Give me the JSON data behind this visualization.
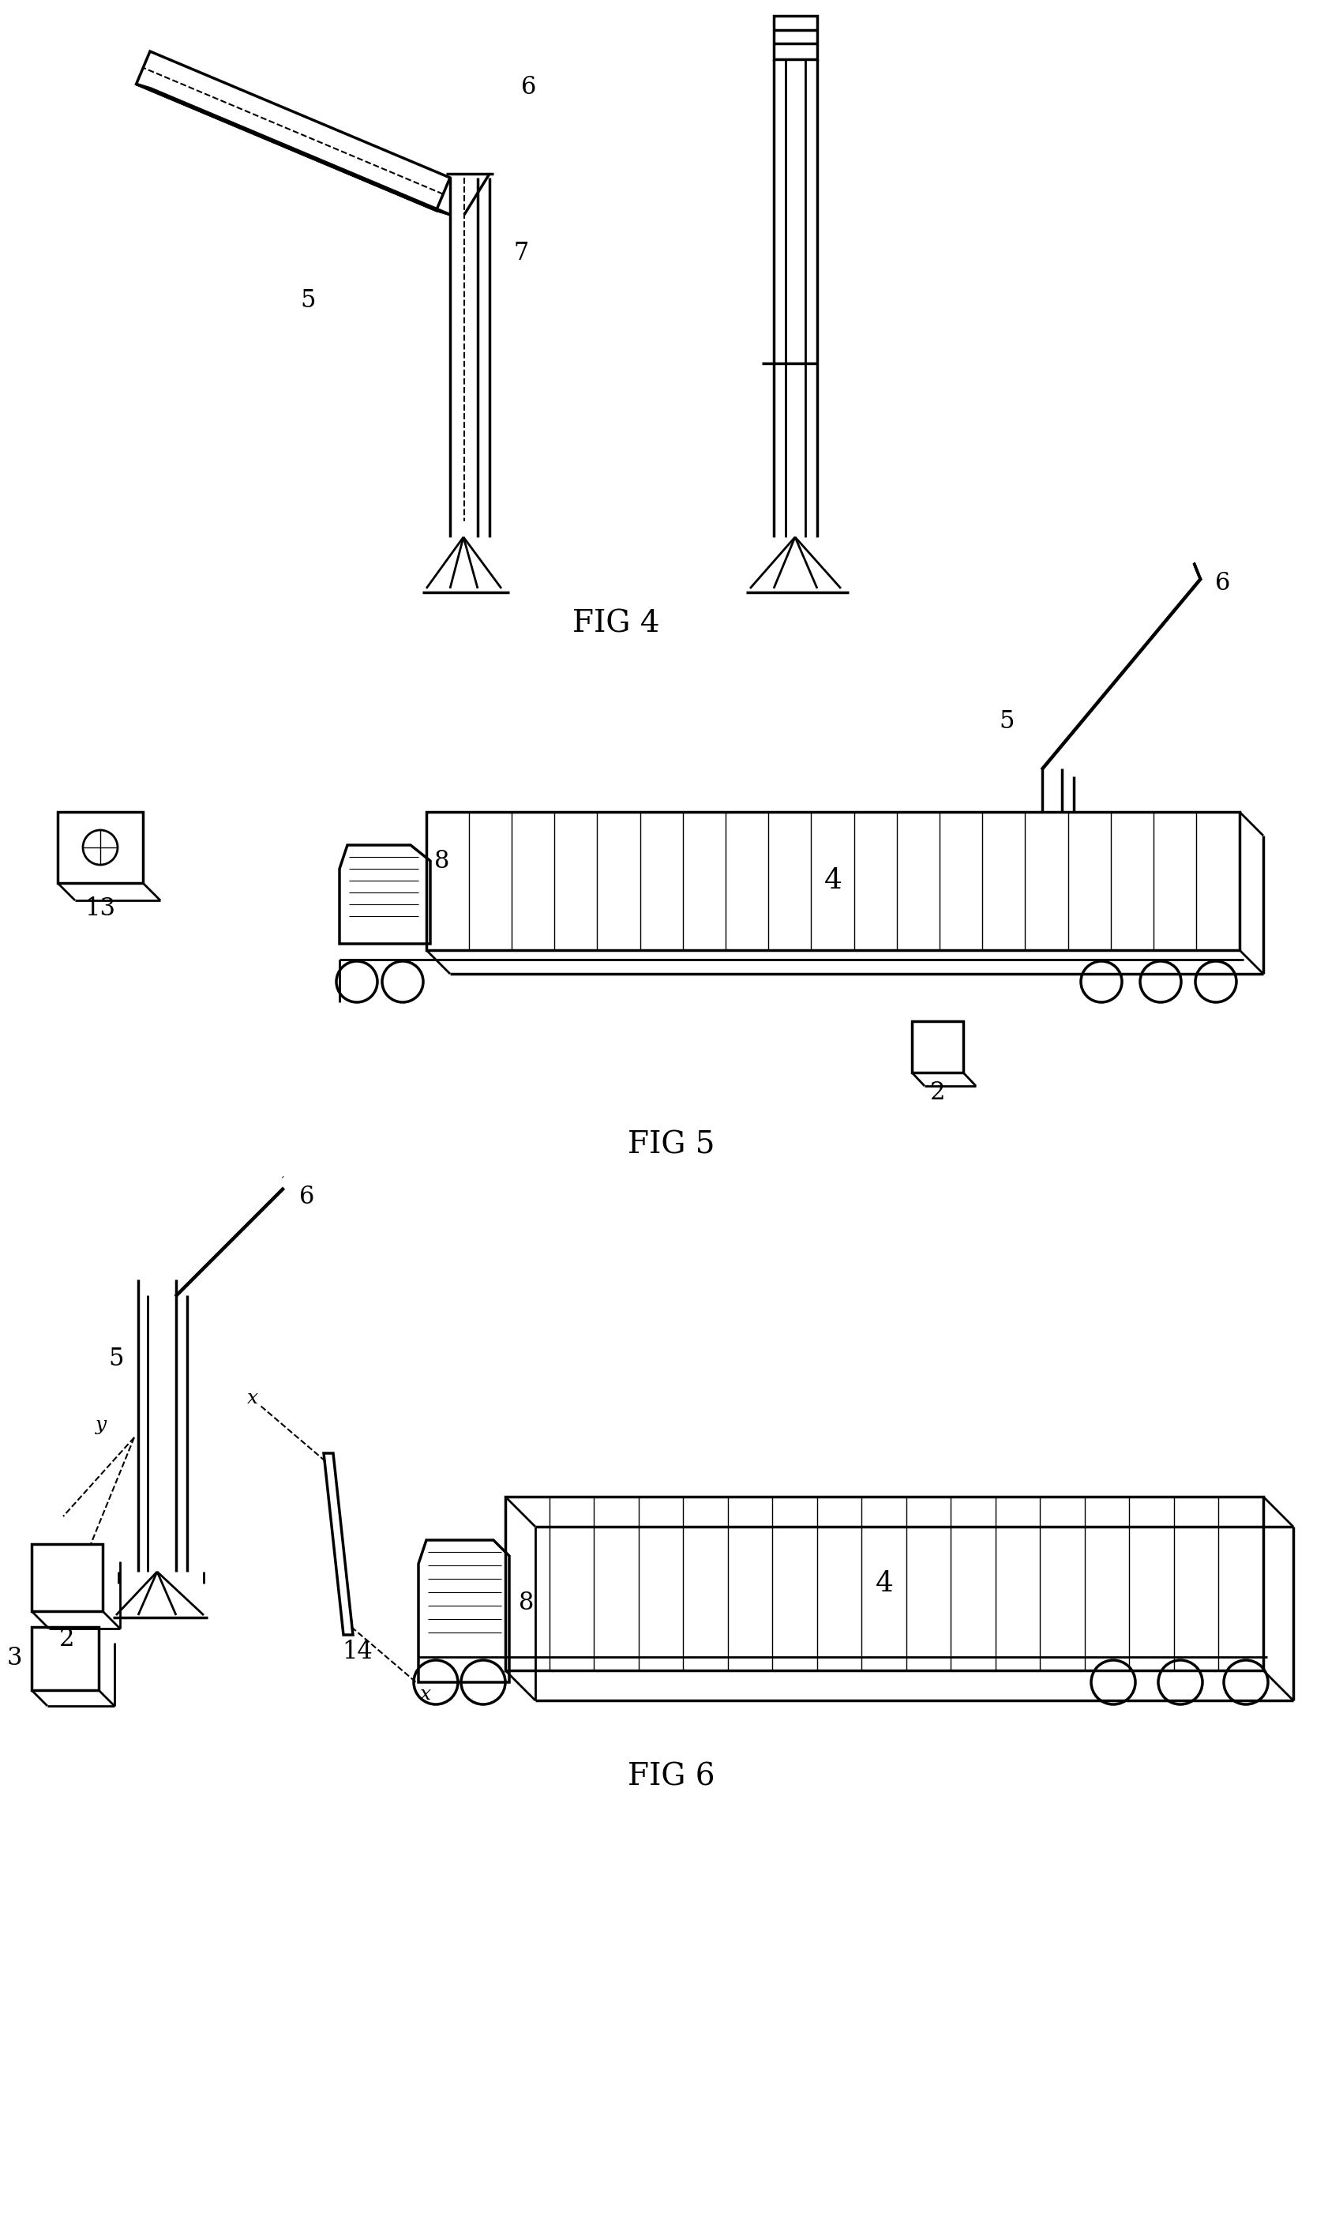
{
  "bg_color": "#ffffff",
  "line_color": "#000000",
  "fig_width": 17.01,
  "fig_height": 28.02,
  "fig4_label": "FIG 4",
  "fig5_label": "FIG 5",
  "fig6_label": "FIG 6",
  "labels": {
    "fig4_5": "5",
    "fig4_6": "6",
    "fig4_7": "7",
    "fig5_5": "5",
    "fig5_6": "6",
    "fig5_4": "4",
    "fig5_8": "8",
    "fig5_13": "13",
    "fig5_2": "2",
    "fig6_5": "5",
    "fig6_6": "6",
    "fig6_2": "2",
    "fig6_3": "3",
    "fig6_8": "8",
    "fig6_14": "14",
    "fig6_4": "4"
  },
  "font_size_label": 22,
  "font_size_fig": 28,
  "lw": 2.0,
  "lw_thick": 2.5
}
